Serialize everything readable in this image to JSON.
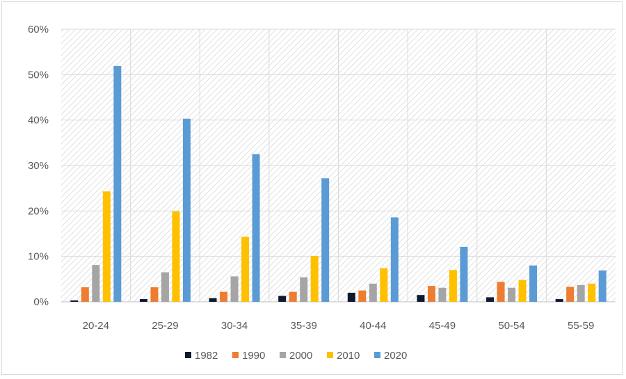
{
  "chart_data": {
    "type": "bar",
    "categories": [
      "20-24",
      "25-29",
      "30-34",
      "35-39",
      "40-44",
      "45-49",
      "50-54",
      "55-59"
    ],
    "series": [
      {
        "name": "1982",
        "color": "#0d1a2e",
        "values": [
          0.3,
          0.6,
          0.8,
          1.3,
          2.0,
          1.5,
          1.0,
          0.6
        ]
      },
      {
        "name": "1990",
        "color": "#ed7d31",
        "values": [
          3.2,
          3.2,
          2.2,
          2.2,
          2.5,
          3.5,
          4.4,
          3.3
        ]
      },
      {
        "name": "2000",
        "color": "#a5a5a5",
        "values": [
          8.1,
          6.5,
          5.6,
          5.4,
          4.0,
          3.1,
          3.1,
          3.7
        ]
      },
      {
        "name": "2010",
        "color": "#ffc000",
        "values": [
          24.3,
          19.9,
          14.3,
          10.1,
          7.4,
          7.0,
          4.8,
          4.0
        ]
      },
      {
        "name": "2020",
        "color": "#5b9bd5",
        "values": [
          51.9,
          40.3,
          32.5,
          27.2,
          18.6,
          12.1,
          8.0,
          6.9
        ]
      }
    ],
    "y_tick_labels": [
      "0%",
      "10%",
      "20%",
      "30%",
      "40%",
      "50%",
      "60%"
    ],
    "ylim": [
      0,
      60
    ],
    "title": "",
    "xlabel": "",
    "ylabel": "",
    "grid": true,
    "legend_position": "bottom"
  }
}
